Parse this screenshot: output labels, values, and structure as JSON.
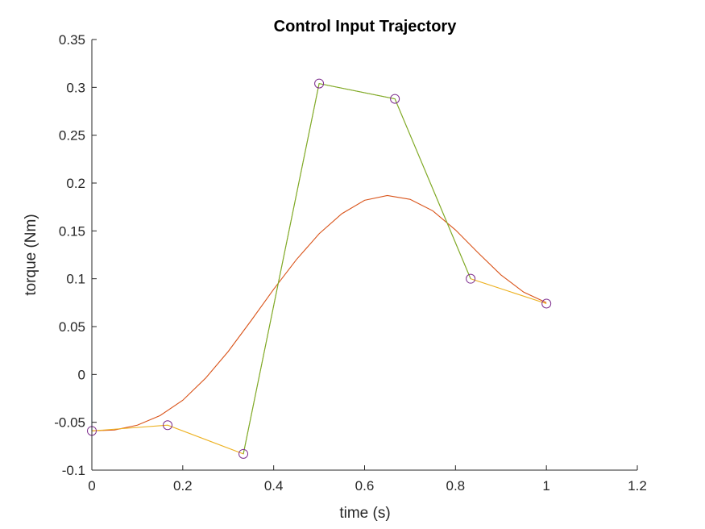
{
  "chart_data": {
    "type": "line",
    "title": "Control Input Trajectory",
    "xlabel": "time (s)",
    "ylabel": "torque (Nm)",
    "xlim": [
      0,
      1.2
    ],
    "ylim": [
      -0.1,
      0.35
    ],
    "xticks": [
      0,
      0.2,
      0.4,
      0.6,
      0.8,
      1,
      1.2
    ],
    "xtick_labels": [
      "0",
      "0.2",
      "0.4",
      "0.6",
      "0.8",
      "1",
      "1.2"
    ],
    "yticks": [
      -0.1,
      -0.05,
      0,
      0.05,
      0.1,
      0.15,
      0.2,
      0.25,
      0.3,
      0.35
    ],
    "ytick_labels": [
      "-0.1",
      "-0.05",
      "0",
      "0.05",
      "0.1",
      "0.15",
      "0.2",
      "0.25",
      "0.3",
      "0.35"
    ],
    "grid": false,
    "legend": "none",
    "series": [
      {
        "style": "line",
        "color": "#0072BD",
        "x": [
          0,
          0
        ],
        "y": [
          0,
          -0.059
        ]
      },
      {
        "style": "line",
        "color": "#D95319",
        "x": [
          0,
          0.05,
          0.1,
          0.15,
          0.2,
          0.25,
          0.3,
          0.35,
          0.4,
          0.45,
          0.5,
          0.55,
          0.6,
          0.65,
          0.7,
          0.75,
          0.8,
          0.85,
          0.9,
          0.95,
          1.0
        ],
        "y": [
          -0.059,
          -0.058,
          -0.053,
          -0.043,
          -0.027,
          -0.004,
          0.024,
          0.056,
          0.089,
          0.12,
          0.147,
          0.168,
          0.182,
          0.187,
          0.183,
          0.171,
          0.151,
          0.127,
          0.104,
          0.086,
          0.075
        ]
      },
      {
        "style": "line",
        "color": "#EDB120",
        "x": [
          0,
          0.1667,
          0.3333,
          0.5,
          0.6667,
          0.8333,
          1.0
        ],
        "y": [
          -0.059,
          -0.053,
          -0.083,
          0.304,
          0.288,
          0.1,
          0.074
        ]
      },
      {
        "style": "line",
        "color": "#77AC30",
        "x": [
          0.3333,
          0.5,
          0.6667,
          0.8333
        ],
        "y": [
          -0.083,
          0.304,
          0.288,
          0.1
        ]
      },
      {
        "style": "markers",
        "marker": "circle",
        "color": "#7E2F8E",
        "x": [
          0,
          0.1667,
          0.3333,
          0.5,
          0.6667,
          0.8333,
          1.0
        ],
        "y": [
          -0.059,
          -0.053,
          -0.083,
          0.304,
          0.288,
          0.1,
          0.074
        ]
      }
    ]
  }
}
